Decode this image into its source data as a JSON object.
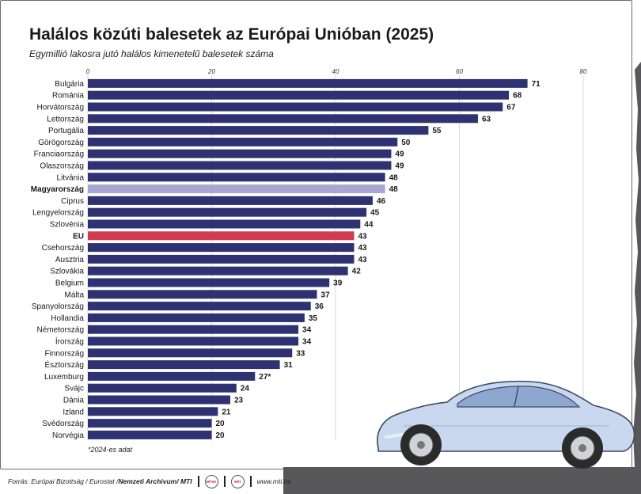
{
  "header": {
    "title": "Halálos közúti balesetek az Európai Unióban (2025)",
    "subtitle": "Egymillió lakosra jutó halálos kimenetelű balesetek száma"
  },
  "footnote": "*2024-es adat",
  "footer": {
    "source_prefix": "Forrás: Európai Bizottság / Eurostat / ",
    "archive": "Nemzeti Archivum",
    "mti": " / MTI",
    "logo1": "MTVA",
    "logo2": "MTI",
    "url": "www.mti.hu"
  },
  "colors": {
    "bar": "#2e3272",
    "highlight": "#a9a6d6",
    "eu": "#d13b4f",
    "grid": "#cfcfcf",
    "road": "#58585b",
    "car_body": "#c9d8ef"
  },
  "chart_data": {
    "type": "bar",
    "orientation": "horizontal",
    "categories": [
      "Bulgária",
      "Románia",
      "Horvátország",
      "Lettország",
      "Portugália",
      "Görögország",
      "Franciaország",
      "Olaszország",
      "Litvánia",
      "Magyarország",
      "Ciprus",
      "Lengyelország",
      "Szlovénia",
      "EU",
      "Csehország",
      "Ausztria",
      "Szlovákia",
      "Belgium",
      "Málta",
      "Spanyolország",
      "Hollandia",
      "Németország",
      "Írország",
      "Finnország",
      "Észtország",
      "Luxemburg",
      "Svájc",
      "Dánia",
      "Izland",
      "Svédország",
      "Norvégia"
    ],
    "values": [
      71,
      68,
      67,
      63,
      55,
      50,
      49,
      49,
      48,
      48,
      46,
      45,
      44,
      43,
      43,
      43,
      42,
      39,
      37,
      36,
      35,
      34,
      34,
      33,
      31,
      27,
      24,
      23,
      21,
      20,
      20
    ],
    "value_labels": [
      "71",
      "68",
      "67",
      "63",
      "55",
      "50",
      "49",
      "49",
      "48",
      "48",
      "46",
      "45",
      "44",
      "43",
      "43",
      "43",
      "42",
      "39",
      "37",
      "36",
      "35",
      "34",
      "34",
      "33",
      "31",
      "27*",
      "24",
      "23",
      "21",
      "20",
      "20"
    ],
    "highlight": {
      "Magyarország": "highlight",
      "EU": "eu"
    },
    "bold_categories": [
      "Magyarország",
      "EU"
    ],
    "xlim": [
      0,
      80
    ],
    "xticks": [
      0,
      20,
      40,
      60,
      80
    ],
    "axis_position": "top",
    "grid": true
  }
}
